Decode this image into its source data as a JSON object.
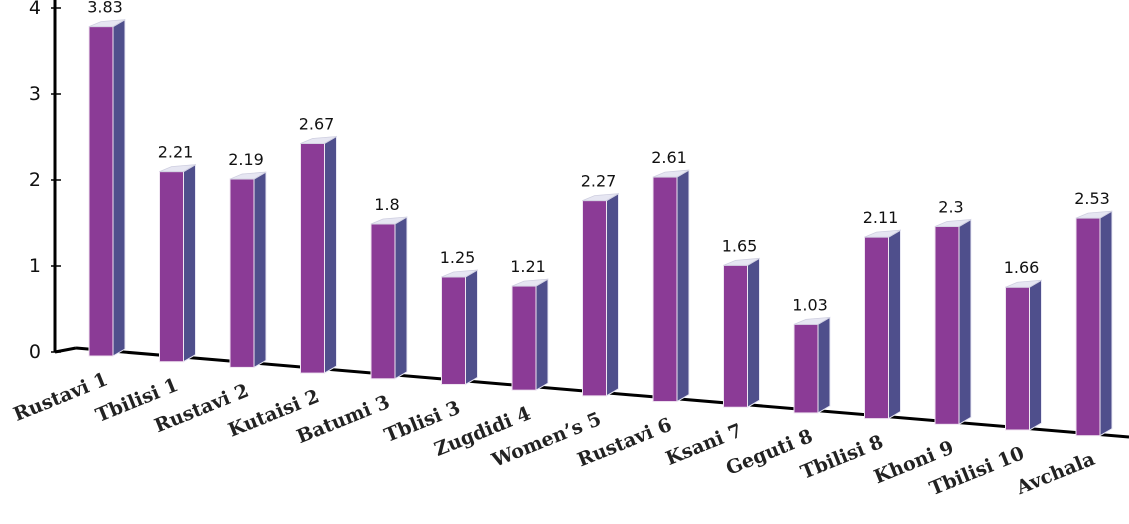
{
  "chart_data": {
    "type": "bar",
    "categories": [
      "Rustavi 1",
      "Tbilisi 1",
      "Rustavi 2",
      "Kutaisi 2",
      "Batumi 3",
      "Tblisi 3",
      "Zugdidi 4",
      "Women’s 5",
      "Rustavi 6",
      "Ksani 7",
      "Geguti 8",
      "Tbilisi 8",
      "Khoni 9",
      "Tbilisi 10",
      "Avchala"
    ],
    "values": [
      3.83,
      2.21,
      2.19,
      2.67,
      1.8,
      1.25,
      1.21,
      2.27,
      2.61,
      1.65,
      1.03,
      2.11,
      2.3,
      1.66,
      2.53
    ],
    "title": "",
    "xlabel": "",
    "ylabel": "",
    "ylim": [
      0,
      4
    ],
    "yticks": [
      0,
      1,
      2,
      3,
      4
    ],
    "grid": false,
    "colors": {
      "bar_front": "#8b3b96",
      "bar_side": "#4f4f8c",
      "bar_top": "#e6e6f2"
    }
  }
}
